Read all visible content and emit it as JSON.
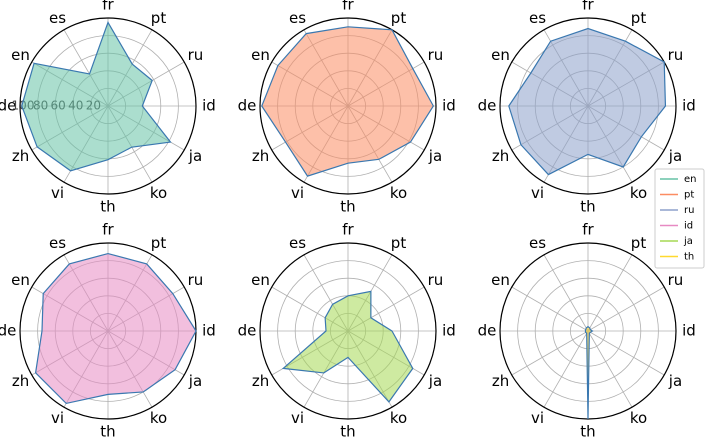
{
  "chart_data": {
    "type": "radar",
    "categories": [
      "id",
      "ru",
      "pt",
      "fr",
      "es",
      "en",
      "de",
      "zh",
      "vi",
      "th",
      "ko",
      "ja"
    ],
    "rlim": [
      0,
      100
    ],
    "rticks": [
      20,
      40,
      60,
      80,
      100
    ],
    "grid": true,
    "legend": "right",
    "edge_color": "#3a78b0",
    "series": [
      {
        "name": "en",
        "color": "#66c2a5",
        "values": [
          39,
          58,
          55,
          95,
          42,
          97,
          98,
          93,
          85,
          61,
          54,
          82
        ]
      },
      {
        "name": "pt",
        "color": "#fc8d62",
        "values": [
          97,
          85,
          100,
          90,
          95,
          92,
          98,
          82,
          92,
          65,
          70,
          82
        ]
      },
      {
        "name": "ru",
        "color": "#8da0cb",
        "values": [
          88,
          100,
          85,
          88,
          85,
          75,
          90,
          88,
          90,
          55,
          80,
          70
        ]
      },
      {
        "name": "id",
        "color": "#e78ac3",
        "values": [
          100,
          85,
          88,
          88,
          88,
          85,
          75,
          95,
          95,
          72,
          80,
          88
        ]
      },
      {
        "name": "ja",
        "color": "#a6d854",
        "values": [
          50,
          30,
          52,
          40,
          35,
          30,
          25,
          85,
          55,
          30,
          93,
          85
        ]
      },
      {
        "name": "th",
        "color": "#ffd92f",
        "values": [
          5,
          3,
          4,
          5,
          4,
          3,
          3,
          3,
          3,
          100,
          3,
          3
        ]
      }
    ]
  }
}
